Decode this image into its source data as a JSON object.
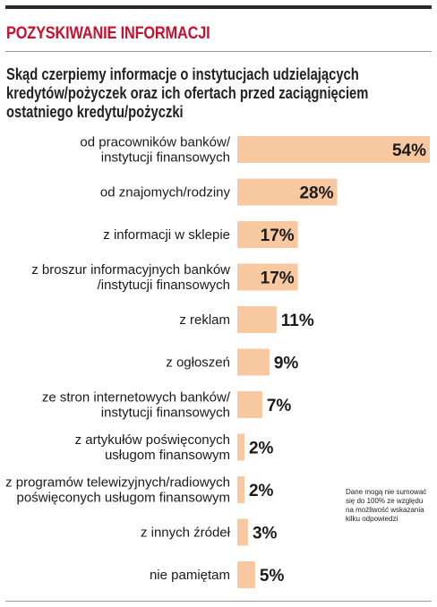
{
  "colors": {
    "bar": "#f8c8a0",
    "title": "#c8102e",
    "text": "#1a1a1a"
  },
  "header": {
    "title": "POZYSKIWANIE INFORMACJI",
    "subtitle_lines": [
      "Skąd czerpiemy informacje o instytucjach udzielających",
      "kredytów/pożyczek oraz ich ofertach przed zaciągnięciem",
      "ostatniego kredytu/pożyczki"
    ]
  },
  "note": "Dane mogą nie sumować się do 100% ze względu na możliwość wskazania kilku odpowiedzi",
  "chart_data": {
    "type": "bar",
    "orientation": "horizontal",
    "title": "",
    "xlabel": "",
    "ylabel": "",
    "xlim": [
      0,
      54
    ],
    "grid": false,
    "categories": [
      [
        "od pracowników banków/",
        "instytucji finansowych"
      ],
      [
        "od znajomych/rodziny"
      ],
      [
        "z informacji w sklepie"
      ],
      [
        "z broszur informacyjnych banków",
        "/instytucji finansowych"
      ],
      [
        "z reklam"
      ],
      [
        "z ogłoszeń"
      ],
      [
        "ze stron internetowych banków/",
        "instytucji finansowych"
      ],
      [
        "z artykułów poświęconych",
        "usługom finansowym"
      ],
      [
        "z programów telewizyjnych/radiowych",
        "poświęconych usługom finansowym"
      ],
      [
        "z innych źródeł"
      ],
      [
        "nie pamiętam"
      ]
    ],
    "values": [
      54,
      28,
      17,
      17,
      11,
      9,
      7,
      2,
      2,
      3,
      5
    ],
    "value_labels": [
      "54%",
      "28%",
      "17%",
      "17%",
      "11%",
      "9%",
      "7%",
      "2%",
      "2%",
      "3%",
      "5%"
    ]
  }
}
